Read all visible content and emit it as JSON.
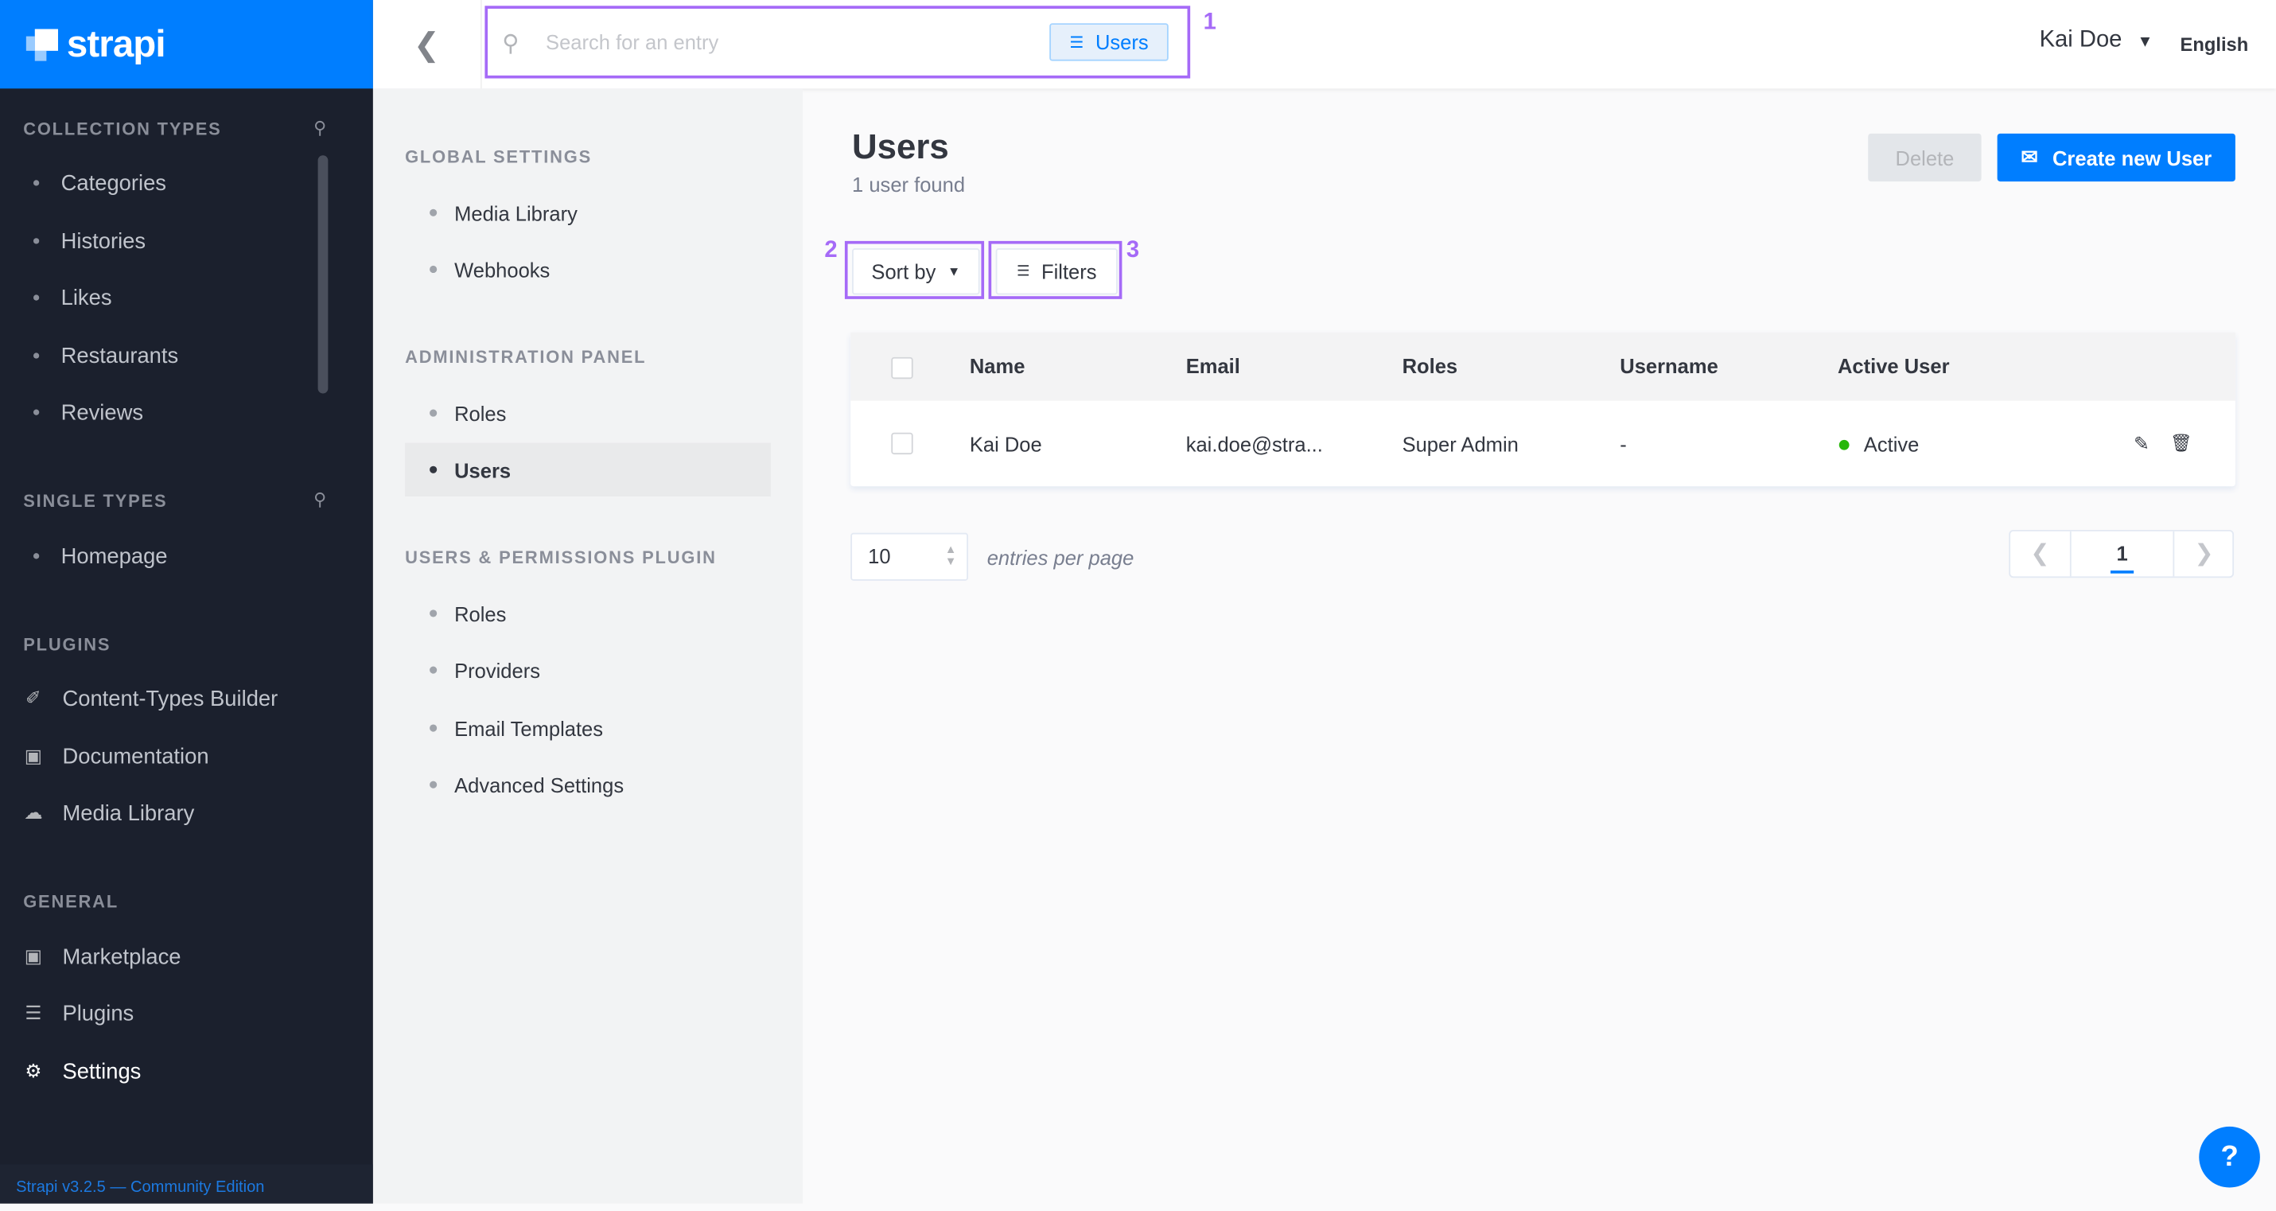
{
  "brand": {
    "name": "strapi",
    "color": "#007eff"
  },
  "sidebar": {
    "collection_types": {
      "title": "COLLECTION TYPES",
      "items": [
        "Categories",
        "Histories",
        "Likes",
        "Restaurants",
        "Reviews"
      ]
    },
    "single_types": {
      "title": "SINGLE TYPES",
      "items": [
        "Homepage"
      ]
    },
    "plugins": {
      "title": "PLUGINS",
      "items": [
        {
          "label": "Content-Types Builder",
          "icon": "paint-brush-icon"
        },
        {
          "label": "Documentation",
          "icon": "book-icon"
        },
        {
          "label": "Media Library",
          "icon": "cloud-upload-icon"
        }
      ]
    },
    "general": {
      "title": "GENERAL",
      "items": [
        {
          "label": "Marketplace",
          "icon": "shopping-basket-icon"
        },
        {
          "label": "Plugins",
          "icon": "list-icon"
        },
        {
          "label": "Settings",
          "icon": "gear-icon"
        }
      ]
    },
    "footer": "Strapi v3.2.5 — Community Edition"
  },
  "header": {
    "search_placeholder": "Search for an entry",
    "search_filter": "Users",
    "user": "Kai Doe",
    "language": "English"
  },
  "markers": [
    "1",
    "2",
    "3"
  ],
  "settings_nav": {
    "sections": [
      {
        "title": "GLOBAL SETTINGS",
        "items": [
          "Media Library",
          "Webhooks"
        ]
      },
      {
        "title": "ADMINISTRATION PANEL",
        "items": [
          "Roles",
          "Users"
        ]
      },
      {
        "title": "USERS & PERMISSIONS PLUGIN",
        "items": [
          "Roles",
          "Providers",
          "Email Templates",
          "Advanced Settings"
        ]
      }
    ],
    "active": "Users"
  },
  "main": {
    "title": "Users",
    "subtitle": "1 user found",
    "delete_label": "Delete",
    "create_label": "Create new User",
    "sort_label": "Sort by",
    "filters_label": "Filters",
    "table": {
      "columns": [
        "Name",
        "Email",
        "Roles",
        "Username",
        "Active User"
      ],
      "rows": [
        {
          "name": "Kai Doe",
          "email": "kai.doe@stra...",
          "roles": "Super Admin",
          "username": "-",
          "active": "Active"
        }
      ]
    },
    "per_page": "10",
    "per_page_label": "entries per page",
    "current_page": "1",
    "status_color": "#27b70a"
  },
  "help_label": "?"
}
